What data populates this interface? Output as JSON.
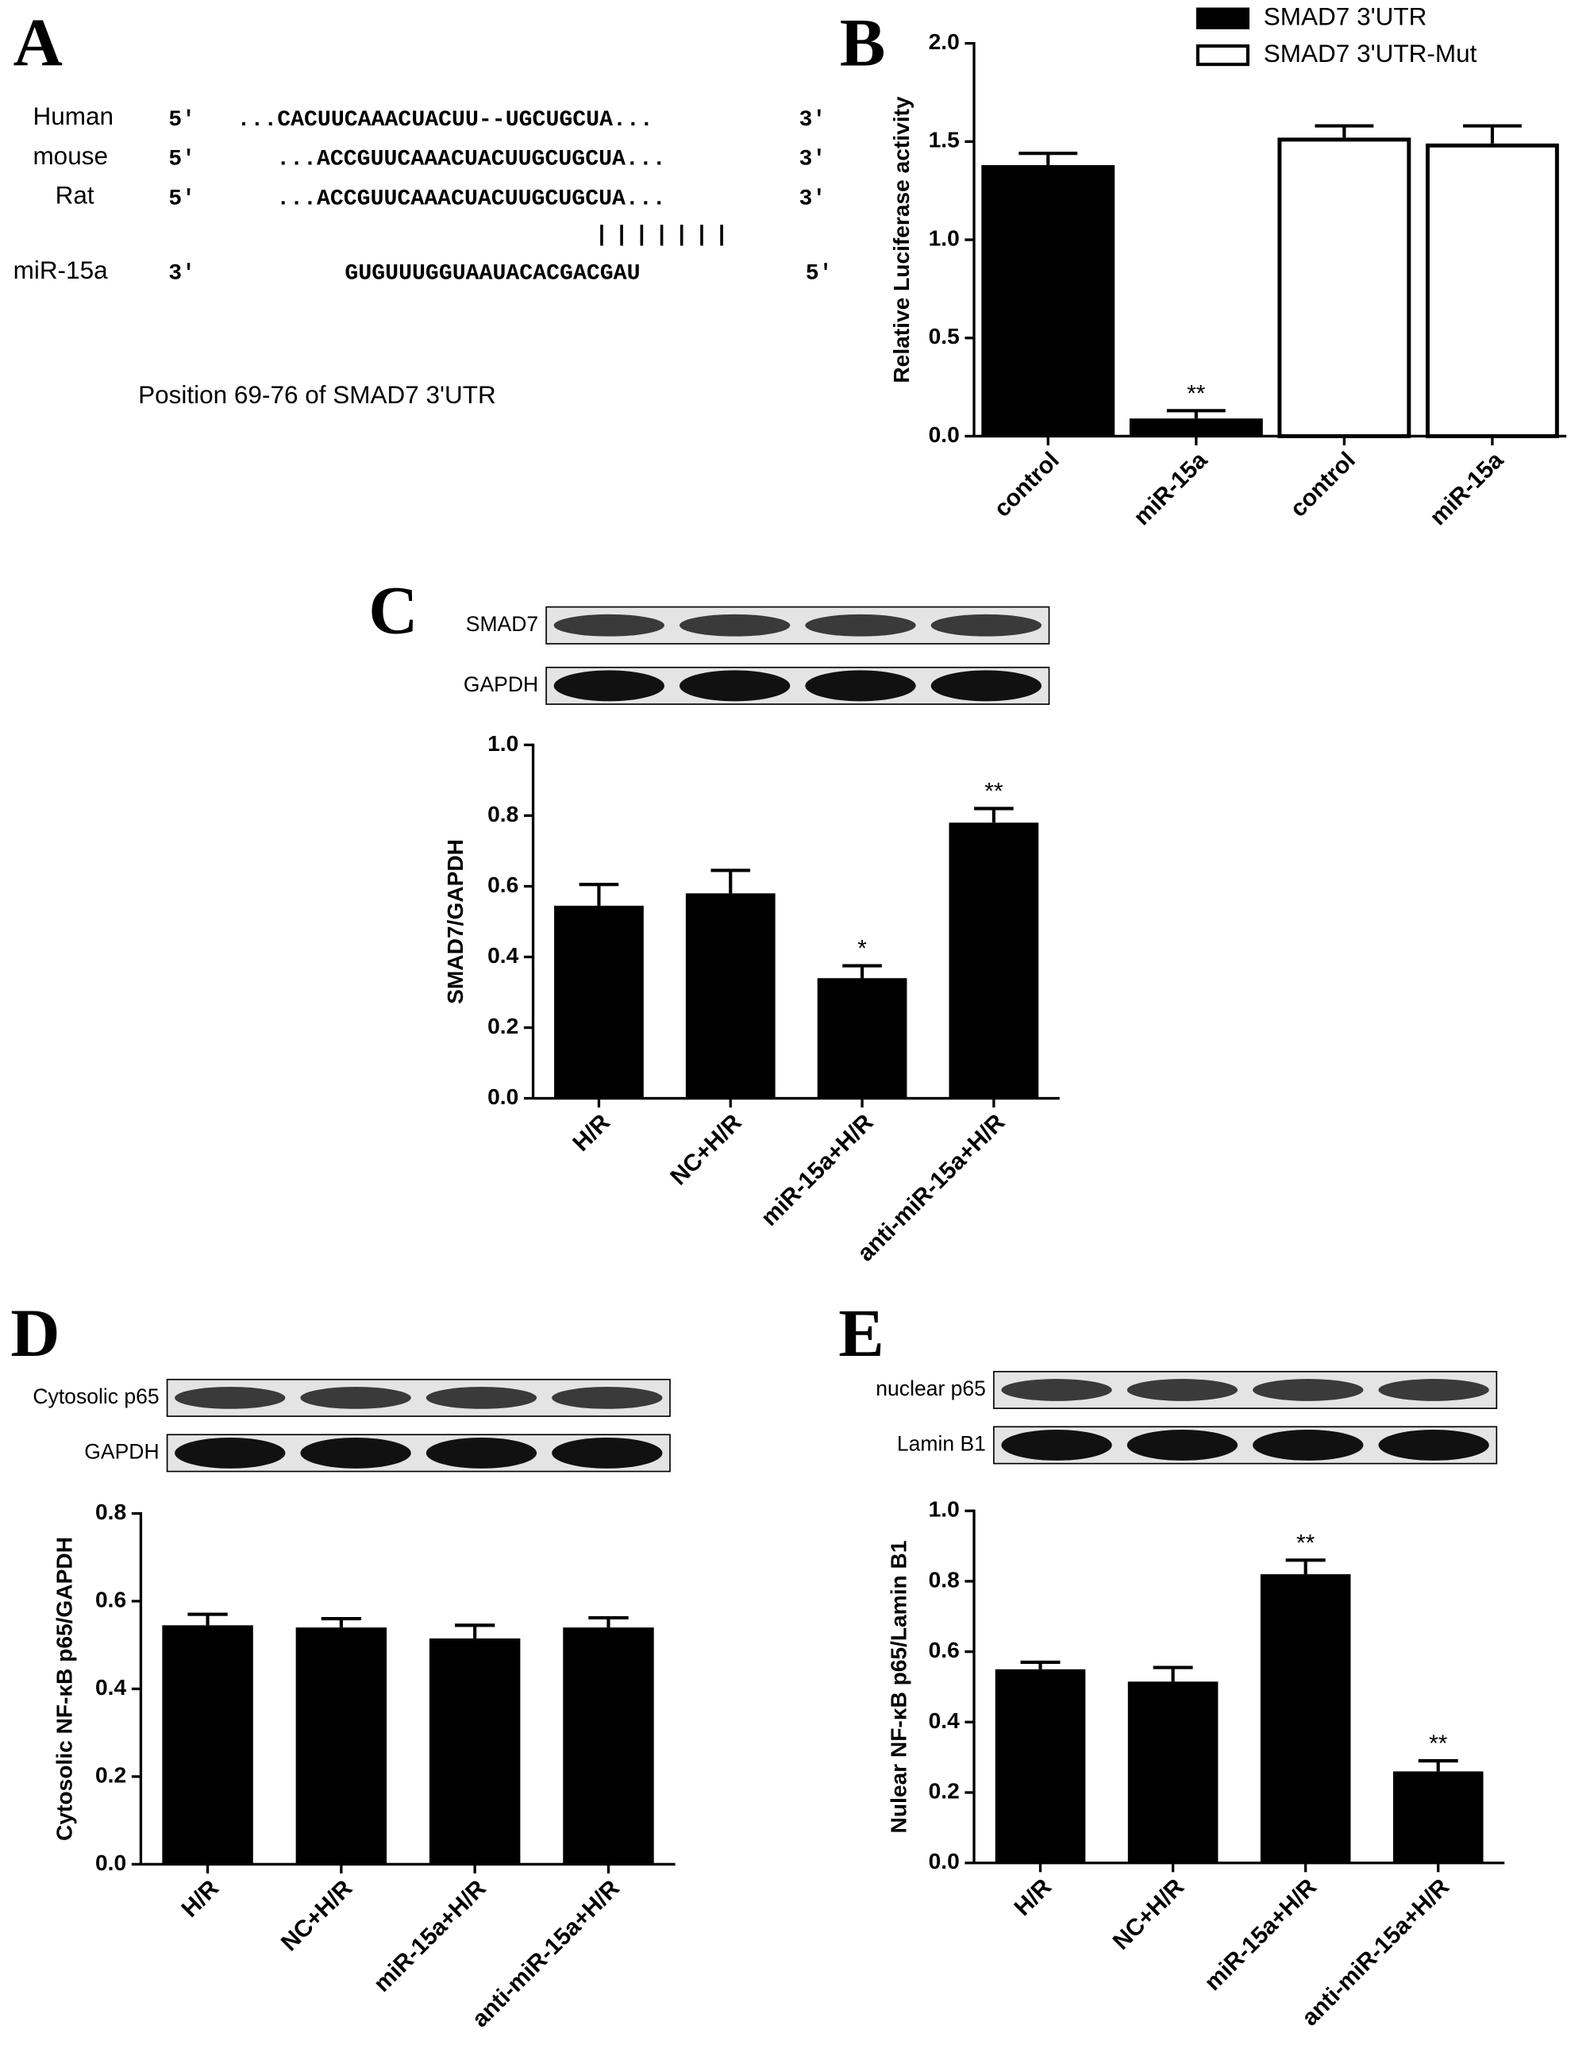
{
  "panel_a": {
    "label": "A",
    "rows": [
      {
        "name": "Human",
        "left": "5'",
        "seq": "...CACUUCAAACUACUU--UGCUGCUA...",
        "right": "3′"
      },
      {
        "name": "mouse",
        "left": "5'",
        "seq": "...ACCGUUCAAACUACUUGCUGCUA...",
        "right": "3′"
      },
      {
        "name": "Rat",
        "left": "5'",
        "seq": "...ACCGUUCAAACUACUUGCUGCUA...",
        "right": "3′"
      }
    ],
    "pairing": "|||||||",
    "mirna": {
      "name": "miR-15a",
      "left": "3'",
      "seq": "GUGUUUGGUAAUACACGACGAU",
      "right": "5′"
    },
    "caption": "Position 69-76 of SMAD7 3'UTR"
  },
  "chart_data": [
    {
      "type": "bar",
      "label": "B",
      "ylabel": "Relative Luciferase activity",
      "categories": [
        "control",
        "miR-15a",
        "control",
        "miR-15a"
      ],
      "series": [
        {
          "name": "SMAD7 3'UTR",
          "color": "#000000",
          "values": [
            1.38,
            0.09,
            null,
            null
          ],
          "errors": [
            0.06,
            0.04,
            null,
            null
          ],
          "annotations": [
            null,
            "**",
            null,
            null
          ]
        },
        {
          "name": "SMAD7 3'UTR-Mut",
          "color": "#ffffff",
          "values": [
            null,
            null,
            1.52,
            1.49
          ],
          "errors": [
            null,
            null,
            0.06,
            0.09
          ],
          "annotations": [
            null,
            null,
            null,
            null
          ]
        }
      ],
      "ylim": [
        0,
        2
      ],
      "yticks": [
        {
          "value": 0,
          "label": "0.0"
        },
        {
          "value": 0.5,
          "label": "0.5"
        },
        {
          "value": 1,
          "label": "1.0"
        },
        {
          "value": 1.5,
          "label": "1.5"
        },
        {
          "value": 2,
          "label": "2.0"
        }
      ]
    },
    {
      "type": "bar",
      "label": "C",
      "ylabel": "SMAD7/GAPDH",
      "blot_labels": [
        "SMAD7",
        "GAPDH"
      ],
      "categories": [
        "H/R",
        "NC+H/R",
        "miR-15a+H/R",
        "anti-miR-15a+H/R"
      ],
      "color": "#000000",
      "values": [
        0.545,
        0.58,
        0.34,
        0.78
      ],
      "errors": [
        0.06,
        0.065,
        0.035,
        0.04
      ],
      "annotations": [
        null,
        null,
        "*",
        "**"
      ],
      "ylim": [
        0,
        1
      ],
      "yticks": [
        {
          "value": 0,
          "label": "0.0"
        },
        {
          "value": 0.2,
          "label": "0.2"
        },
        {
          "value": 0.4,
          "label": "0.4"
        },
        {
          "value": 0.6,
          "label": "0.6"
        },
        {
          "value": 0.8,
          "label": "0.8"
        },
        {
          "value": 1,
          "label": "1.0"
        }
      ]
    },
    {
      "type": "bar",
      "label": "D",
      "ylabel": "Cytosolic NF-κB p65/GAPDH",
      "blot_labels": [
        "Cytosolic p65",
        "GAPDH"
      ],
      "categories": [
        "H/R",
        "NC+H/R",
        "miR-15a+H/R",
        "anti-miR-15a+H/R"
      ],
      "color": "#000000",
      "values": [
        0.545,
        0.54,
        0.515,
        0.54
      ],
      "errors": [
        0.025,
        0.02,
        0.03,
        0.022
      ],
      "annotations": [
        null,
        null,
        null,
        null
      ],
      "ylim": [
        0,
        0.8
      ],
      "yticks": [
        {
          "value": 0,
          "label": "0.0"
        },
        {
          "value": 0.2,
          "label": "0.2"
        },
        {
          "value": 0.4,
          "label": "0.4"
        },
        {
          "value": 0.6,
          "label": "0.6"
        },
        {
          "value": 0.8,
          "label": "0.8"
        }
      ]
    },
    {
      "type": "bar",
      "label": "E",
      "ylabel": "Nulear NF-κB p65/Lamin B1",
      "blot_labels": [
        "nuclear p65",
        "Lamin B1"
      ],
      "categories": [
        "H/R",
        "NC+H/R",
        "miR-15a+H/R",
        "anti-miR-15a+H/R"
      ],
      "color": "#000000",
      "values": [
        0.55,
        0.515,
        0.82,
        0.26
      ],
      "errors": [
        0.02,
        0.04,
        0.04,
        0.03
      ],
      "annotations": [
        null,
        null,
        "**",
        "**"
      ],
      "ylim": [
        0,
        1
      ],
      "yticks": [
        {
          "value": 0,
          "label": "0.0"
        },
        {
          "value": 0.2,
          "label": "0.2"
        },
        {
          "value": 0.4,
          "label": "0.4"
        },
        {
          "value": 0.6,
          "label": "0.6"
        },
        {
          "value": 0.8,
          "label": "0.8"
        },
        {
          "value": 1,
          "label": "1.0"
        }
      ]
    }
  ]
}
